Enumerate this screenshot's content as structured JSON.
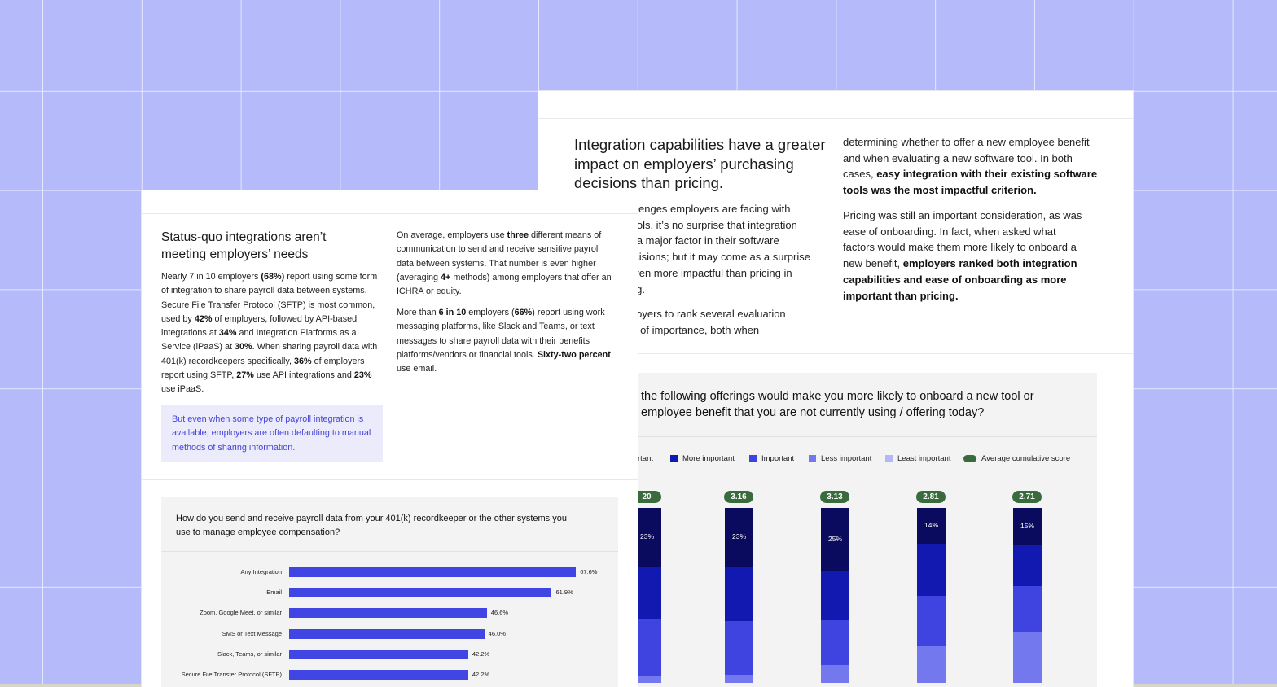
{
  "right_card": {
    "heading": "Integration capabilities have a greater impact on employers’ purchasing decisions than pricing.",
    "left_col_lines": [
      "allenges employers are facing with",
      "tools, it’s no surprise that integration",
      "e a major factor in their software",
      "ecisions; but it may come as a surprise",
      "even more impactful than pricing in",
      "ing."
    ],
    "left_col_lines2": [
      "ployers to rank several evaluation",
      "er of importance, both when"
    ],
    "right_col_p1_plain": "determining whether to offer a new employee benefit and when evaluating a new software tool. In both cases, ",
    "right_col_p1_bold": "easy integration with their existing software tools was the most impactful criterion.",
    "right_col_p2_plain": "Pricing was still an important consideration, as was ease of onboarding. In fact, when asked what factors would make them more likely to onboard a new benefit, ",
    "right_col_p2_bold": "employers ranked both integration capabilities and ease of onboarding as more important than pricing."
  },
  "colors": {
    "most_important": "#0a0a5e",
    "more_important": "#1119b0",
    "important": "#3f43df",
    "less_important": "#7478ee",
    "least_important": "#b5b8f8",
    "avg_score": "#3a6b3c",
    "callout_text": "#4546d6",
    "bar": "#4145e4"
  },
  "chart_data": [
    {
      "type": "bar",
      "title": "the following offerings would make you more likely to onboard a new tool or employee benefit that you are not currently using / offering today?",
      "series": [
        {
          "name": "rtant",
          "color": "#0a0a5e",
          "values": [
            23,
            23,
            25,
            14,
            15
          ]
        },
        {
          "name": "More important",
          "color": "#1119b0",
          "values": [
            null,
            null,
            null,
            null,
            null
          ]
        },
        {
          "name": "Important",
          "color": "#3f43df",
          "values": [
            null,
            null,
            null,
            null,
            null
          ]
        },
        {
          "name": "Less important",
          "color": "#7478ee",
          "values": [
            null,
            null,
            null,
            null,
            null
          ]
        },
        {
          "name": "Least important",
          "color": "#b5b8f8",
          "values": [
            null,
            null,
            null,
            null,
            null
          ]
        }
      ],
      "scores": [
        "20",
        "3.16",
        "3.13",
        "2.81",
        "2.71"
      ],
      "legend_extra": "Average cumulative score",
      "segment_labels": [
        "23%",
        "23%",
        "25%",
        "14%",
        "15%"
      ]
    },
    {
      "type": "bar",
      "orientation": "horizontal",
      "title": "How do you send and receive payroll data from your 401(k) recordkeeper or the other systems you use to manage employee compensation?",
      "categories": [
        "Any Integration",
        "Email",
        "Zoom, Google Meet, or similar",
        "SMS or Text Message",
        "Slack, Teams, or similar",
        "Secure File Transfer Protocol (SFTP)"
      ],
      "values": [
        67.6,
        61.9,
        46.6,
        46.0,
        42.2,
        42.2
      ],
      "value_labels": [
        "67.6%",
        "61.9%",
        "46.6%",
        "46.0%",
        "42.2%",
        "42.2%"
      ],
      "xlim": [
        0,
        100
      ]
    }
  ],
  "left_card": {
    "heading": "Status-quo integrations aren’t meeting employers’ needs",
    "p1": [
      {
        "t": "Nearly 7 in 10 employers "
      },
      {
        "b": "(68%)"
      },
      {
        "t": " report using some form of integration to share payroll data between systems. Secure File Transfer Protocol (SFTP) is most common, used by "
      },
      {
        "b": "42%"
      },
      {
        "t": " of employers, followed by API-based integrations at "
      },
      {
        "b": "34%"
      },
      {
        "t": " and Integration Platforms as a Service (iPaaS) at "
      },
      {
        "b": "30%"
      },
      {
        "t": ". When sharing payroll data with 401(k) recordkeepers specifically, "
      },
      {
        "b": "36%"
      },
      {
        "t": " of employers report using SFTP, "
      },
      {
        "b": "27%"
      },
      {
        "t": " use API integrations and "
      },
      {
        "b": "23%"
      },
      {
        "t": " use iPaaS."
      }
    ],
    "p2": [
      {
        "t": "On average, employers use "
      },
      {
        "b": "three"
      },
      {
        "t": " different means of communication to send and receive sensitive payroll data between systems. That number is even higher (averaging "
      },
      {
        "b": "4+"
      },
      {
        "t": " methods) among employers that offer an ICHRA or equity."
      }
    ],
    "p3": [
      {
        "t": "More than "
      },
      {
        "b": "6 in 10"
      },
      {
        "t": " employers ("
      },
      {
        "b": "66%"
      },
      {
        "t": ") report using work messaging platforms, like Slack and Teams, or text messages to share payroll data with their benefits platforms/vendors or financial tools. "
      },
      {
        "b": "Sixty-two percent"
      },
      {
        "t": " use email."
      }
    ],
    "callout": "But even when some type of payroll integration is available, employers are often defaulting to manual methods of sharing information."
  }
}
